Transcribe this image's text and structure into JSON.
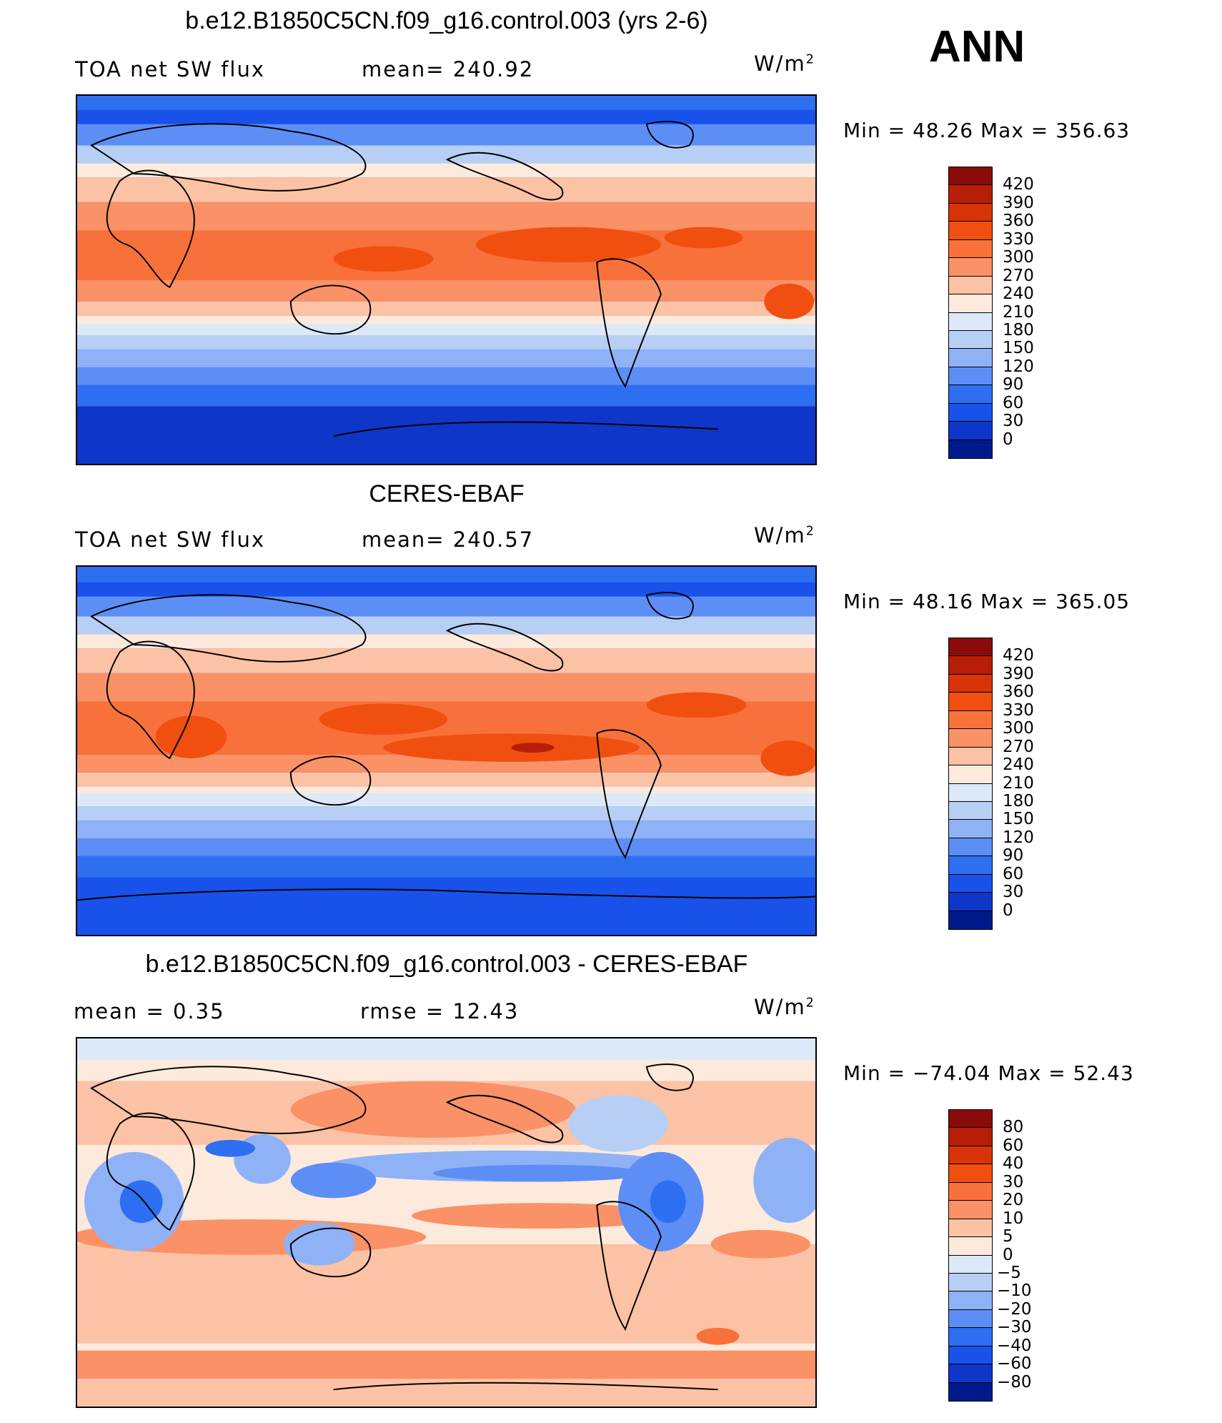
{
  "header": {
    "season": "ANN"
  },
  "panels": [
    {
      "title": "b.e12.B1850C5CN.f09_g16.control.003 (yrs 2-6)",
      "left_label": "TOA net SW flux",
      "center_label": "mean= 240.92",
      "units_base": "W/m",
      "units_exp": "2",
      "minmax": "Min =   48.26 Max = 356.63",
      "kind": "model",
      "colorbar": {
        "labels": [
          "420",
          "390",
          "360",
          "330",
          "300",
          "270",
          "240",
          "210",
          "180",
          "150",
          "120",
          "90",
          "60",
          "30",
          "0"
        ],
        "colors": [
          "#8b0a0a",
          "#b81e07",
          "#d83408",
          "#f04f10",
          "#f8713a",
          "#fa9167",
          "#fcc2a5",
          "#fdeadd",
          "#dce9f8",
          "#b7cff5",
          "#8fb2f6",
          "#5d8ef5",
          "#2e6ef1",
          "#1952ea",
          "#0e36c8",
          "#001a8c"
        ]
      }
    },
    {
      "title": "CERES-EBAF",
      "left_label": "TOA net SW flux",
      "center_label": "mean= 240.57",
      "units_base": "W/m",
      "units_exp": "2",
      "minmax": "Min =   48.16 Max = 365.05",
      "kind": "obs",
      "colorbar": {
        "labels": [
          "420",
          "390",
          "360",
          "330",
          "300",
          "270",
          "240",
          "210",
          "180",
          "150",
          "120",
          "90",
          "60",
          "30",
          "0"
        ],
        "colors": [
          "#8b0a0a",
          "#b81e07",
          "#d83408",
          "#f04f10",
          "#f8713a",
          "#fa9167",
          "#fcc2a5",
          "#fdeadd",
          "#dce9f8",
          "#b7cff5",
          "#8fb2f6",
          "#5d8ef5",
          "#2e6ef1",
          "#1952ea",
          "#0e36c8",
          "#001a8c"
        ]
      }
    },
    {
      "title": "b.e12.B1850C5CN.f09_g16.control.003 - CERES-EBAF",
      "left_label": "mean =    0.35",
      "center_label": "rmse =   12.43",
      "units_base": "W/m",
      "units_exp": "2",
      "minmax": "Min = −74.04 Max =   52.43",
      "kind": "diff",
      "colorbar": {
        "labels": [
          "80",
          "60",
          "40",
          "30",
          "20",
          "10",
          "5",
          "0",
          "−5",
          "−10",
          "−20",
          "−30",
          "−40",
          "−60",
          "−80"
        ],
        "colors": [
          "#8b0a0a",
          "#b81e07",
          "#d83408",
          "#f04f10",
          "#f8713a",
          "#fa9167",
          "#fcc2a5",
          "#fdeadd",
          "#dce9f8",
          "#b7cff5",
          "#8fb2f6",
          "#5d8ef5",
          "#2e6ef1",
          "#1952ea",
          "#0e36c8",
          "#001a8c"
        ]
      }
    }
  ]
}
